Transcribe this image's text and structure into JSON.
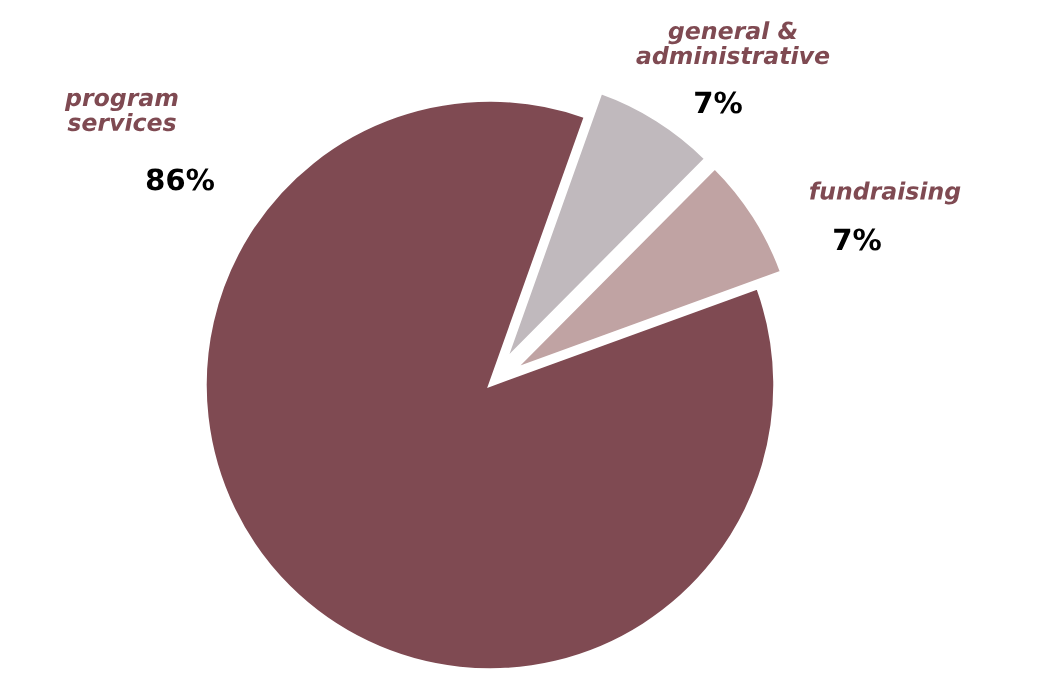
{
  "chart_data": {
    "type": "pie",
    "categories": [
      "program\nservices",
      "general &\nadministrative",
      "fundraising"
    ],
    "values": [
      86,
      7,
      7
    ],
    "colors": [
      "#7f4a52",
      "#c0b9bd",
      "#c0a3a3"
    ],
    "value_labels": [
      "86%",
      "7%",
      "7%"
    ]
  }
}
